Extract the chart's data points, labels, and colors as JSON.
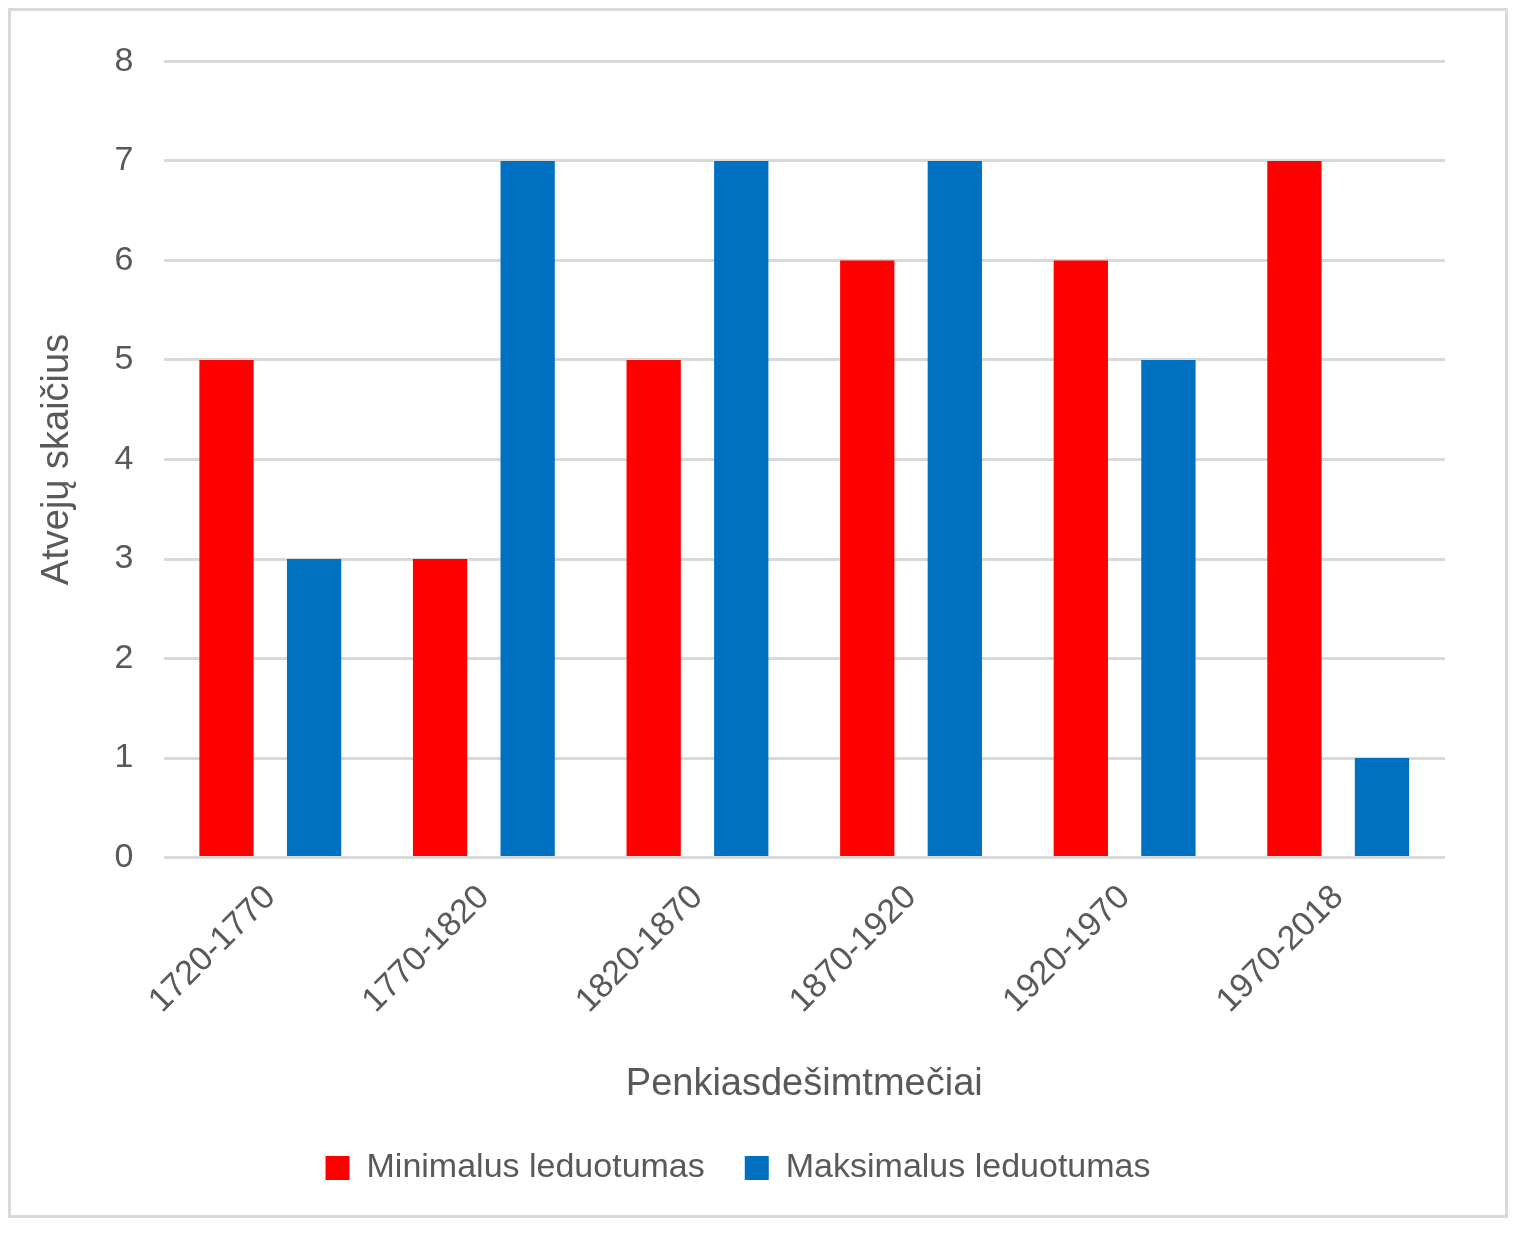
{
  "chart_data": {
    "type": "bar",
    "xlabel": "Penkiasdešimtmečiai",
    "ylabel": "Atvejų skaičius",
    "categories": [
      "1720-1770",
      "1770-1820",
      "1820-1870",
      "1870-1920",
      "1920-1970",
      "1970-2018"
    ],
    "series": [
      {
        "name": "Minimalus leduotumas",
        "color": "#ff0000",
        "values": [
          5,
          3,
          5,
          6,
          6,
          7
        ]
      },
      {
        "name": "Maksimalus leduotumas",
        "color": "#0070c0",
        "values": [
          3,
          7,
          7,
          7,
          5,
          1
        ]
      }
    ],
    "ylim": [
      0,
      8
    ],
    "yticks": [
      0,
      1,
      2,
      3,
      4,
      5,
      6,
      7,
      8
    ],
    "grid": "y",
    "legend": "bottom"
  }
}
